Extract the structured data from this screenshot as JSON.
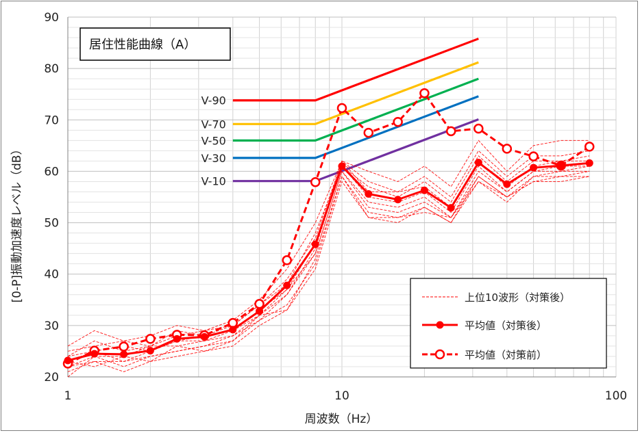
{
  "chart_data": {
    "type": "line",
    "title": "居住性能曲線（A）",
    "xlabel": "周波数（Hz）",
    "ylabel": "[0-P]振動加速度レベル（dB）",
    "x_scale": "log",
    "xlim": [
      1,
      100
    ],
    "ylim": [
      20,
      90
    ],
    "x_ticks": [
      "1",
      "10",
      "100"
    ],
    "y_ticks": [
      "20",
      "30",
      "40",
      "50",
      "60",
      "70",
      "80",
      "90"
    ],
    "grid": true,
    "legend_position": "bottom-right",
    "colors": {
      "red": "#ff0000",
      "v90": "#ff0000",
      "v70": "#ffc000",
      "v50": "#00b050",
      "v30": "#0070c0",
      "v10": "#7030a0"
    },
    "x": [
      1,
      1.25,
      1.6,
      2,
      2.5,
      3.15,
      4,
      5,
      6.3,
      8,
      10,
      12.5,
      16,
      20,
      25,
      31.5,
      40,
      50,
      63,
      80
    ],
    "series": [
      {
        "name": "平均値（対策後）",
        "style": "solid-filled-circle",
        "values": [
          23.2,
          24.5,
          24.4,
          25.1,
          27.4,
          27.8,
          29.2,
          32.8,
          37.8,
          45.8,
          61.0,
          55.6,
          54.5,
          56.3,
          52.9,
          61.7,
          57.5,
          60.7,
          61.1,
          61.6
        ]
      },
      {
        "name": "平均値（対策前）",
        "style": "dashed-open-circle",
        "values": [
          22.6,
          25.1,
          25.9,
          27.4,
          28.2,
          28.1,
          30.5,
          34.2,
          42.7,
          57.9,
          72.3,
          67.5,
          69.6,
          75.2,
          67.8,
          68.3,
          64.4,
          62.9,
          61.1,
          64.8
        ]
      }
    ],
    "top10_waveforms": {
      "name": "上位10波形（対策後）",
      "style": "thin-dashed",
      "values": [
        [
          26,
          29,
          27,
          26,
          28,
          29,
          30,
          34,
          39,
          47,
          62,
          60,
          58,
          61,
          57,
          66,
          60,
          65,
          66,
          66
        ],
        [
          25,
          26,
          27,
          28,
          30,
          29,
          31,
          35,
          41,
          50,
          62,
          58,
          56,
          59,
          55,
          64,
          59,
          63,
          63,
          64
        ],
        [
          24,
          27,
          25,
          26,
          29,
          28,
          30,
          34,
          38,
          48,
          61,
          57,
          55,
          58,
          54,
          63,
          58,
          62,
          62,
          63
        ],
        [
          23,
          25,
          26,
          25,
          27,
          28,
          29,
          33,
          37,
          46,
          62,
          56,
          56,
          57,
          53,
          62,
          57,
          61,
          62,
          62
        ],
        [
          22,
          24,
          24,
          26,
          26,
          27,
          28,
          32,
          36,
          45,
          61,
          55,
          54,
          56,
          52,
          61,
          56,
          60,
          61,
          61
        ],
        [
          21,
          23,
          23,
          25,
          27,
          27,
          29,
          32,
          37,
          44,
          60,
          54,
          53,
          55,
          51,
          60,
          56,
          60,
          60,
          61
        ],
        [
          20,
          24,
          22,
          24,
          25,
          26,
          28,
          31,
          36,
          44,
          60,
          53,
          52,
          54,
          51,
          59,
          55,
          59,
          60,
          60
        ],
        [
          23,
          22,
          24,
          23,
          26,
          25,
          27,
          31,
          34,
          42,
          59,
          52,
          51,
          53,
          50,
          59,
          55,
          58,
          59,
          60
        ],
        [
          24,
          25,
          23,
          24,
          25,
          26,
          27,
          32,
          33,
          41,
          58,
          51,
          51,
          52,
          51,
          58,
          54,
          59,
          59,
          59
        ],
        [
          22,
          23,
          21,
          23,
          24,
          25,
          26,
          30,
          33,
          43,
          59,
          51,
          50,
          53,
          50,
          58,
          55,
          58,
          58,
          59
        ]
      ]
    },
    "reference_curves": [
      {
        "name": "V-90",
        "key": "v90",
        "flat": 73.8,
        "end": 85.8
      },
      {
        "name": "V-70",
        "key": "v70",
        "flat": 69.2,
        "end": 81.2
      },
      {
        "name": "V-50",
        "key": "v50",
        "flat": 66.0,
        "end": 78.0
      },
      {
        "name": "V-30",
        "key": "v30",
        "flat": 62.6,
        "end": 74.6
      },
      {
        "name": "V-10",
        "key": "v10",
        "flat": 58.1,
        "end": 70.1
      }
    ],
    "reference_x": {
      "start": 4,
      "knee": 8,
      "end": 31.5
    }
  }
}
